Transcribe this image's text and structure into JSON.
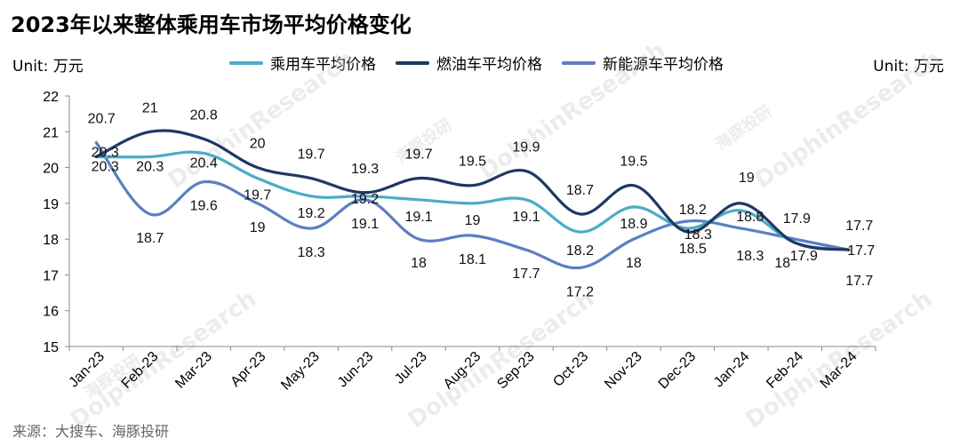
{
  "title": "2023年以来整体乘用车市场平均价格变化",
  "unit_left": "Unit: 万元",
  "unit_right": "Unit:  万元",
  "source": "来源：大搜车、海豚投研",
  "watermark": "DolphinResearch",
  "watermark_cn": "海豚投研",
  "chart_data": {
    "type": "line",
    "categories": [
      "Jan-23",
      "Feb-23",
      "Mar-23",
      "Apr-23",
      "May-23",
      "Jun-23",
      "Jul-23",
      "Aug-23",
      "Sep-23",
      "Oct-23",
      "Nov-23",
      "Dec-23",
      "Jan-24",
      "Feb-24",
      "Mar-24"
    ],
    "ylim": [
      15,
      22
    ],
    "yticks": [
      15,
      16,
      17,
      18,
      19,
      20,
      21,
      22
    ],
    "grid": false,
    "smooth": true,
    "legend_position": "top",
    "series": [
      {
        "name": "乘用车平均价格",
        "color": "#4bacc6",
        "values": [
          20.3,
          20.3,
          20.4,
          19.7,
          19.2,
          19.2,
          19.1,
          19,
          19.1,
          18.2,
          18.9,
          18.3,
          18.8,
          17.9,
          17.7
        ],
        "labels": [
          "20.3",
          "20.3",
          "20.4",
          "19.7",
          "19.2",
          "19.2",
          "19.1",
          "19",
          "19.1",
          "18.2",
          "18.9",
          "18.3",
          "18.8",
          "17.9",
          "17.7"
        ]
      },
      {
        "name": "燃油车平均价格",
        "color": "#1f3864",
        "values": [
          20.3,
          21,
          20.8,
          20,
          19.7,
          19.3,
          19.7,
          19.5,
          19.9,
          18.7,
          19.5,
          18.2,
          19,
          17.9,
          17.7
        ],
        "labels": [
          "20.3",
          "21",
          "20.8",
          "20",
          "19.7",
          "19.3",
          "19.7",
          "19.5",
          "19.9",
          "18.7",
          "19.5",
          "18.2",
          "19",
          "17.9",
          "17.7"
        ]
      },
      {
        "name": "新能源车平均价格",
        "color": "#5b7fbf",
        "values": [
          20.7,
          18.7,
          19.6,
          19,
          18.3,
          19.1,
          18,
          18.1,
          17.7,
          17.2,
          18,
          18.5,
          18.3,
          18,
          17.7
        ],
        "labels": [
          "20.7",
          "18.7",
          "19.6",
          "19",
          "18.3",
          "19.1",
          "18",
          "18.1",
          "17.7",
          "17.2",
          "18",
          "18.5",
          "18.3",
          "18",
          "17.7"
        ]
      }
    ]
  }
}
